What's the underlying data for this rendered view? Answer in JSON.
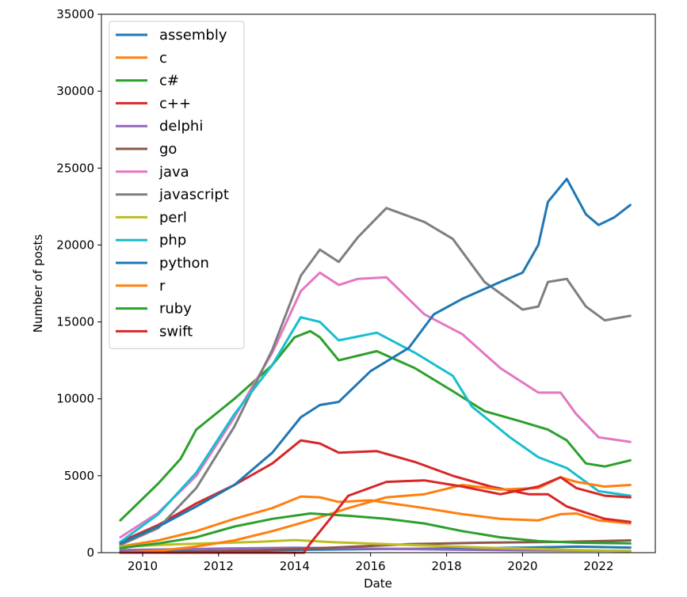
{
  "chart_data": {
    "type": "line",
    "xlabel": "Date",
    "ylabel": "Number of posts",
    "xlim": [
      "2008-12-01",
      "2023-06-30"
    ],
    "ylim": [
      0,
      35000
    ],
    "x_ticks": [
      {
        "label": "2010",
        "date": "2010-01-01"
      },
      {
        "label": "2012",
        "date": "2012-01-01"
      },
      {
        "label": "2014",
        "date": "2014-01-01"
      },
      {
        "label": "2016",
        "date": "2016-01-01"
      },
      {
        "label": "2018",
        "date": "2018-01-01"
      },
      {
        "label": "2020",
        "date": "2020-01-01"
      },
      {
        "label": "2022",
        "date": "2022-01-01"
      }
    ],
    "y_ticks": [
      0,
      5000,
      10000,
      15000,
      20000,
      25000,
      30000,
      35000
    ],
    "grid": false,
    "legend_position": "top-left",
    "colors": [
      "#1f77b4",
      "#ff7f0e",
      "#2ca02c",
      "#d62728",
      "#9467bd",
      "#8c564b",
      "#e377c2",
      "#7f7f7f",
      "#bcbd22",
      "#17becf"
    ],
    "series": [
      {
        "name": "assembly",
        "points": [
          [
            "2009-06-01",
            40
          ],
          [
            "2012-01-01",
            110
          ],
          [
            "2014-01-01",
            180
          ],
          [
            "2016-01-01",
            230
          ],
          [
            "2018-01-01",
            270
          ],
          [
            "2020-01-01",
            330
          ],
          [
            "2021-06-01",
            390
          ],
          [
            "2022-11-01",
            330
          ]
        ]
      },
      {
        "name": "c",
        "points": [
          [
            "2009-06-01",
            400
          ],
          [
            "2010-06-01",
            800
          ],
          [
            "2011-06-01",
            1400
          ],
          [
            "2012-06-01",
            2200
          ],
          [
            "2013-06-01",
            2900
          ],
          [
            "2014-03-01",
            3650
          ],
          [
            "2014-09-01",
            3600
          ],
          [
            "2015-03-01",
            3300
          ],
          [
            "2016-01-01",
            3400
          ],
          [
            "2016-06-01",
            3250
          ],
          [
            "2017-06-01",
            2900
          ],
          [
            "2018-06-01",
            2500
          ],
          [
            "2019-06-01",
            2200
          ],
          [
            "2020-06-01",
            2100
          ],
          [
            "2021-01-01",
            2500
          ],
          [
            "2021-06-01",
            2550
          ],
          [
            "2022-01-01",
            2100
          ],
          [
            "2022-11-01",
            1900
          ]
        ]
      },
      {
        "name": "c#",
        "points": [
          [
            "2009-06-01",
            2100
          ],
          [
            "2010-06-01",
            4500
          ],
          [
            "2011-01-01",
            6100
          ],
          [
            "2011-06-01",
            8000
          ],
          [
            "2012-06-01",
            10000
          ],
          [
            "2013-06-01",
            12200
          ],
          [
            "2014-01-01",
            14000
          ],
          [
            "2014-06-01",
            14400
          ],
          [
            "2014-09-01",
            14000
          ],
          [
            "2015-03-01",
            12500
          ],
          [
            "2016-03-01",
            13100
          ],
          [
            "2017-03-01",
            12000
          ],
          [
            "2018-03-01",
            10500
          ],
          [
            "2019-01-01",
            9200
          ],
          [
            "2020-01-01",
            8500
          ],
          [
            "2020-09-01",
            8000
          ],
          [
            "2021-03-01",
            7300
          ],
          [
            "2021-09-01",
            5800
          ],
          [
            "2022-03-01",
            5600
          ],
          [
            "2022-11-01",
            6000
          ]
        ]
      },
      {
        "name": "c++",
        "points": [
          [
            "2009-06-01",
            700
          ],
          [
            "2010-06-01",
            1800
          ],
          [
            "2011-06-01",
            3200
          ],
          [
            "2012-06-01",
            4400
          ],
          [
            "2013-06-01",
            5800
          ],
          [
            "2014-03-01",
            7300
          ],
          [
            "2014-09-01",
            7100
          ],
          [
            "2015-03-01",
            6500
          ],
          [
            "2016-03-01",
            6600
          ],
          [
            "2017-03-01",
            5900
          ],
          [
            "2018-03-01",
            5000
          ],
          [
            "2019-03-01",
            4300
          ],
          [
            "2020-03-01",
            3800
          ],
          [
            "2020-09-01",
            3800
          ],
          [
            "2021-03-01",
            3000
          ],
          [
            "2022-03-01",
            2200
          ],
          [
            "2022-11-01",
            2000
          ]
        ]
      },
      {
        "name": "delphi",
        "points": [
          [
            "2009-06-01",
            170
          ],
          [
            "2012-01-01",
            260
          ],
          [
            "2014-01-01",
            320
          ],
          [
            "2016-01-01",
            260
          ],
          [
            "2018-01-01",
            200
          ],
          [
            "2020-01-01",
            150
          ],
          [
            "2022-11-01",
            120
          ]
        ]
      },
      {
        "name": "go",
        "points": [
          [
            "2009-06-01",
            0
          ],
          [
            "2011-01-01",
            40
          ],
          [
            "2013-01-01",
            150
          ],
          [
            "2015-01-01",
            330
          ],
          [
            "2017-01-01",
            550
          ],
          [
            "2019-01-01",
            650
          ],
          [
            "2021-01-01",
            700
          ],
          [
            "2022-11-01",
            800
          ]
        ]
      },
      {
        "name": "java",
        "points": [
          [
            "2009-06-01",
            1000
          ],
          [
            "2010-06-01",
            2600
          ],
          [
            "2011-06-01",
            5000
          ],
          [
            "2012-06-01",
            8800
          ],
          [
            "2013-06-01",
            13000
          ],
          [
            "2014-03-01",
            17000
          ],
          [
            "2014-09-01",
            18200
          ],
          [
            "2015-03-01",
            17400
          ],
          [
            "2015-09-01",
            17800
          ],
          [
            "2016-06-01",
            17900
          ],
          [
            "2017-06-01",
            15500
          ],
          [
            "2018-06-01",
            14200
          ],
          [
            "2019-06-01",
            12000
          ],
          [
            "2020-06-01",
            10400
          ],
          [
            "2021-01-01",
            10400
          ],
          [
            "2021-06-01",
            9000
          ],
          [
            "2022-01-01",
            7500
          ],
          [
            "2022-11-01",
            7200
          ]
        ]
      },
      {
        "name": "javascript",
        "points": [
          [
            "2009-06-01",
            500
          ],
          [
            "2010-06-01",
            1600
          ],
          [
            "2011-06-01",
            4200
          ],
          [
            "2012-06-01",
            8200
          ],
          [
            "2013-06-01",
            13200
          ],
          [
            "2014-03-01",
            18000
          ],
          [
            "2014-09-01",
            19700
          ],
          [
            "2015-03-01",
            18900
          ],
          [
            "2015-09-01",
            20500
          ],
          [
            "2016-06-01",
            22400
          ],
          [
            "2017-06-01",
            21500
          ],
          [
            "2018-03-01",
            20400
          ],
          [
            "2019-01-01",
            17600
          ],
          [
            "2020-01-01",
            15800
          ],
          [
            "2020-06-01",
            16000
          ],
          [
            "2020-09-01",
            17600
          ],
          [
            "2021-03-01",
            17800
          ],
          [
            "2021-09-01",
            16000
          ],
          [
            "2022-03-01",
            15100
          ],
          [
            "2022-11-01",
            15400
          ]
        ]
      },
      {
        "name": "perl",
        "points": [
          [
            "2009-06-01",
            400
          ],
          [
            "2011-01-01",
            550
          ],
          [
            "2013-01-01",
            700
          ],
          [
            "2014-01-01",
            820
          ],
          [
            "2015-01-01",
            680
          ],
          [
            "2017-01-01",
            500
          ],
          [
            "2019-01-01",
            330
          ],
          [
            "2021-01-01",
            200
          ],
          [
            "2022-11-01",
            100
          ]
        ]
      },
      {
        "name": "php",
        "points": [
          [
            "2009-06-01",
            700
          ],
          [
            "2010-06-01",
            2500
          ],
          [
            "2011-06-01",
            5200
          ],
          [
            "2012-06-01",
            9000
          ],
          [
            "2013-06-01",
            12200
          ],
          [
            "2014-03-01",
            15300
          ],
          [
            "2014-09-01",
            15000
          ],
          [
            "2015-03-01",
            13800
          ],
          [
            "2016-03-01",
            14300
          ],
          [
            "2017-03-01",
            13000
          ],
          [
            "2018-03-01",
            11500
          ],
          [
            "2018-09-01",
            9500
          ],
          [
            "2019-09-01",
            7500
          ],
          [
            "2020-06-01",
            6200
          ],
          [
            "2021-03-01",
            5500
          ],
          [
            "2022-01-01",
            4000
          ],
          [
            "2022-11-01",
            3700
          ]
        ]
      },
      {
        "name": "python",
        "points": [
          [
            "2009-06-01",
            600
          ],
          [
            "2010-06-01",
            1700
          ],
          [
            "2011-06-01",
            3000
          ],
          [
            "2012-06-01",
            4400
          ],
          [
            "2013-06-01",
            6500
          ],
          [
            "2014-03-01",
            8800
          ],
          [
            "2014-09-01",
            9600
          ],
          [
            "2015-03-01",
            9800
          ],
          [
            "2016-01-01",
            11800
          ],
          [
            "2017-01-01",
            13300
          ],
          [
            "2017-09-01",
            15500
          ],
          [
            "2018-06-01",
            16500
          ],
          [
            "2019-06-01",
            17600
          ],
          [
            "2020-01-01",
            18200
          ],
          [
            "2020-06-01",
            20000
          ],
          [
            "2020-09-01",
            22800
          ],
          [
            "2021-03-01",
            24300
          ],
          [
            "2021-09-01",
            22000
          ],
          [
            "2022-01-01",
            21300
          ],
          [
            "2022-06-01",
            21800
          ],
          [
            "2022-11-01",
            22600
          ]
        ]
      },
      {
        "name": "r",
        "points": [
          [
            "2009-06-01",
            0
          ],
          [
            "2010-06-01",
            120
          ],
          [
            "2011-06-01",
            400
          ],
          [
            "2012-06-01",
            800
          ],
          [
            "2013-06-01",
            1400
          ],
          [
            "2014-06-01",
            2100
          ],
          [
            "2015-06-01",
            2900
          ],
          [
            "2016-06-01",
            3600
          ],
          [
            "2017-06-01",
            3800
          ],
          [
            "2018-06-01",
            4400
          ],
          [
            "2019-06-01",
            4100
          ],
          [
            "2020-06-01",
            4200
          ],
          [
            "2021-01-01",
            4900
          ],
          [
            "2021-06-01",
            4600
          ],
          [
            "2022-03-01",
            4300
          ],
          [
            "2022-11-01",
            4400
          ]
        ]
      },
      {
        "name": "ruby",
        "points": [
          [
            "2009-06-01",
            300
          ],
          [
            "2010-06-01",
            600
          ],
          [
            "2011-06-01",
            1000
          ],
          [
            "2012-06-01",
            1700
          ],
          [
            "2013-06-01",
            2200
          ],
          [
            "2014-06-01",
            2550
          ],
          [
            "2015-06-01",
            2400
          ],
          [
            "2016-06-01",
            2200
          ],
          [
            "2017-06-01",
            1900
          ],
          [
            "2018-06-01",
            1400
          ],
          [
            "2019-06-01",
            1000
          ],
          [
            "2020-06-01",
            750
          ],
          [
            "2021-06-01",
            650
          ],
          [
            "2022-11-01",
            600
          ]
        ]
      },
      {
        "name": "swift",
        "points": [
          [
            "2009-06-01",
            0
          ],
          [
            "2014-04-01",
            0
          ],
          [
            "2014-06-01",
            600
          ],
          [
            "2015-01-01",
            2400
          ],
          [
            "2015-06-01",
            3700
          ],
          [
            "2016-06-01",
            4600
          ],
          [
            "2017-06-01",
            4700
          ],
          [
            "2018-06-01",
            4300
          ],
          [
            "2019-06-01",
            3800
          ],
          [
            "2020-06-01",
            4300
          ],
          [
            "2021-01-01",
            4900
          ],
          [
            "2021-06-01",
            4200
          ],
          [
            "2022-03-01",
            3700
          ],
          [
            "2022-11-01",
            3600
          ]
        ]
      }
    ]
  }
}
